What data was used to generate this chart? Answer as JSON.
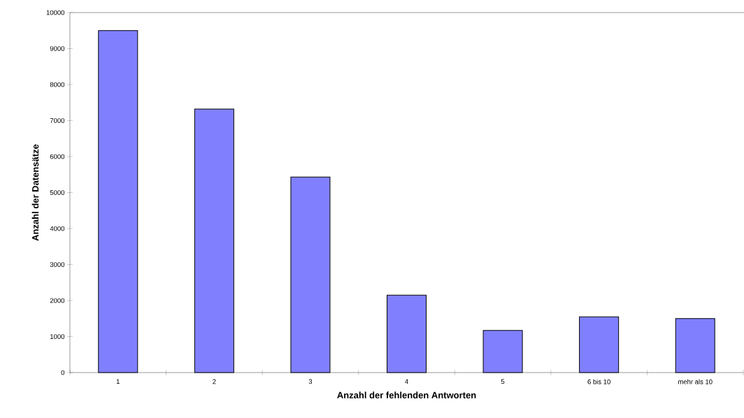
{
  "chart_data": {
    "type": "bar",
    "xlabel": "Anzahl der fehlenden Antworten",
    "ylabel": "Anzahl der Datensätze",
    "categories": [
      "1",
      "2",
      "3",
      "4",
      "5",
      "6 bis 10",
      "mehr als 10"
    ],
    "values": [
      9500,
      7320,
      5430,
      2150,
      1170,
      1550,
      1500
    ],
    "color": "#8080ff",
    "ylim": [
      0,
      10000
    ],
    "yticks": [
      0,
      1000,
      2000,
      3000,
      4000,
      5000,
      6000,
      7000,
      8000,
      9000,
      10000
    ],
    "grid": false
  }
}
